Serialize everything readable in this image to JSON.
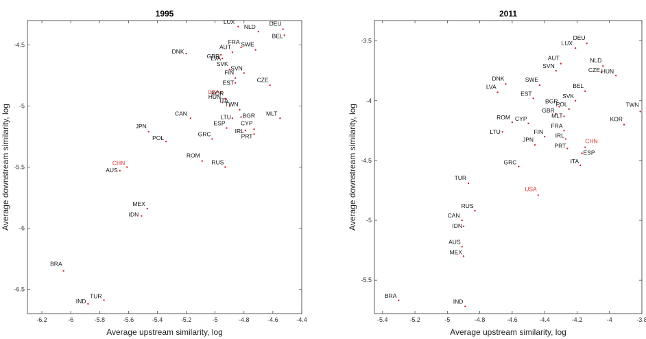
{
  "chart_data": [
    {
      "type": "scatter",
      "title": "1995",
      "xlabel": "Average upstream similarity, log",
      "ylabel": "Average downstream similarity, log",
      "xlim": [
        -6.3,
        -4.4
      ],
      "ylim": [
        -6.7,
        -4.3
      ],
      "xticks": [
        -6.2,
        -6,
        -5.8,
        -5.6,
        -5.4,
        -5.2,
        -5,
        -4.8,
        -4.6,
        -4.4
      ],
      "yticks": [
        -4.5,
        -5,
        -5.5,
        -6,
        -6.5
      ],
      "xtick_labels": [
        "-6.2",
        "-6",
        "-5.8",
        "-5.6",
        "-5.4",
        "-5.2",
        "-5",
        "-4.8",
        "-4.6",
        "-4.4"
      ],
      "ytick_labels": [
        "-4.5",
        "-5",
        "-5.5",
        "-6",
        "-6.5"
      ],
      "highlight_color": "#e03030",
      "point_color": "#d62728",
      "points": [
        {
          "label": "LUX",
          "x": -4.84,
          "y": -4.35,
          "highlight": false
        },
        {
          "label": "NLD",
          "x": -4.7,
          "y": -4.39,
          "highlight": false
        },
        {
          "label": "DEU",
          "x": -4.53,
          "y": -4.37,
          "highlight": false
        },
        {
          "label": "BEL",
          "x": -4.52,
          "y": -4.42,
          "highlight": false
        },
        {
          "label": "FRA",
          "x": -4.82,
          "y": -4.52,
          "highlight": false
        },
        {
          "label": "SWE",
          "x": -4.72,
          "y": -4.54,
          "highlight": false
        },
        {
          "label": "AUT",
          "x": -4.88,
          "y": -4.56,
          "highlight": false
        },
        {
          "label": "GBR",
          "x": -4.96,
          "y": -4.58,
          "highlight": false
        },
        {
          "label": "DNK",
          "x": -5.2,
          "y": -4.57,
          "highlight": false
        },
        {
          "label": "LVA",
          "x": -4.95,
          "y": -4.61,
          "highlight": false
        },
        {
          "label": "SVK",
          "x": -4.9,
          "y": -4.7,
          "highlight": false
        },
        {
          "label": "SVN",
          "x": -4.8,
          "y": -4.73,
          "highlight": false
        },
        {
          "label": "FIN",
          "x": -4.86,
          "y": -4.77,
          "highlight": false
        },
        {
          "label": "CZE",
          "x": -4.62,
          "y": -4.83,
          "highlight": false
        },
        {
          "label": "EST",
          "x": -4.86,
          "y": -4.81,
          "highlight": false
        },
        {
          "label": "USA",
          "x": -4.96,
          "y": -4.89,
          "highlight": true
        },
        {
          "label": "KOR",
          "x": -4.93,
          "y": -4.94,
          "highlight": false
        },
        {
          "label": "HUN",
          "x": -4.95,
          "y": -4.97,
          "highlight": false
        },
        {
          "label": "ITA",
          "x": -4.9,
          "y": -5.0,
          "highlight": false
        },
        {
          "label": "TWN",
          "x": -4.83,
          "y": -5.03,
          "highlight": false
        },
        {
          "label": "CAN",
          "x": -5.17,
          "y": -5.1,
          "highlight": false
        },
        {
          "label": "LTU",
          "x": -4.88,
          "y": -5.1,
          "highlight": false
        },
        {
          "label": "BGR",
          "x": -4.82,
          "y": -5.09,
          "highlight": false
        },
        {
          "label": "MLT",
          "x": -4.55,
          "y": -5.1,
          "highlight": false
        },
        {
          "label": "ESP",
          "x": -4.92,
          "y": -5.18,
          "highlight": false
        },
        {
          "label": "CYP",
          "x": -4.73,
          "y": -5.19,
          "highlight": false
        },
        {
          "label": "IRL",
          "x": -4.79,
          "y": -5.2,
          "highlight": false
        },
        {
          "label": "PRT",
          "x": -4.73,
          "y": -5.23,
          "highlight": false
        },
        {
          "label": "JPN",
          "x": -5.46,
          "y": -5.21,
          "highlight": false
        },
        {
          "label": "POL",
          "x": -5.34,
          "y": -5.29,
          "highlight": false
        },
        {
          "label": "GRC",
          "x": -5.02,
          "y": -5.27,
          "highlight": false
        },
        {
          "label": "ROM",
          "x": -5.09,
          "y": -5.45,
          "highlight": false
        },
        {
          "label": "RUS",
          "x": -4.93,
          "y": -5.5,
          "highlight": false
        },
        {
          "label": "CHN",
          "x": -5.61,
          "y": -5.5,
          "highlight": true
        },
        {
          "label": "AUS",
          "x": -5.66,
          "y": -5.53,
          "highlight": false
        },
        {
          "label": "MEX",
          "x": -5.47,
          "y": -5.84,
          "highlight": false
        },
        {
          "label": "IDN",
          "x": -5.51,
          "y": -5.9,
          "highlight": false
        },
        {
          "label": "BRA",
          "x": -6.05,
          "y": -6.35,
          "highlight": false
        },
        {
          "label": "TUR",
          "x": -5.77,
          "y": -6.59,
          "highlight": false
        },
        {
          "label": "IND",
          "x": -5.88,
          "y": -6.62,
          "highlight": false
        }
      ]
    },
    {
      "type": "scatter",
      "title": "2011",
      "xlabel": "Average upstream similarity, log",
      "ylabel": "Average downstream similarity, log",
      "xlim": [
        -5.45,
        -3.8
      ],
      "ylim": [
        -5.78,
        -3.33
      ],
      "xticks": [
        -5.4,
        -5.2,
        -5,
        -4.8,
        -4.6,
        -4.4,
        -4.2,
        -4,
        -3.8
      ],
      "yticks": [
        -3.5,
        -4,
        -4.5,
        -5,
        -5.5
      ],
      "xtick_labels": [
        "-5.4",
        "-5.2",
        "-5",
        "-4.8",
        "-4.6",
        "-4.4",
        "-4.2",
        "-4",
        "-3.8"
      ],
      "ytick_labels": [
        "-3.5",
        "-4",
        "-4.5",
        "-5",
        "-5.5"
      ],
      "highlight_color": "#e03030",
      "point_color": "#d62728",
      "points": [
        {
          "label": "DEU",
          "x": -4.14,
          "y": -3.52,
          "highlight": false
        },
        {
          "label": "LUX",
          "x": -4.21,
          "y": -3.56,
          "highlight": false
        },
        {
          "label": "AUT",
          "x": -4.3,
          "y": -3.69,
          "highlight": false
        },
        {
          "label": "NLD",
          "x": -4.04,
          "y": -3.71,
          "highlight": false
        },
        {
          "label": "SVN",
          "x": -4.33,
          "y": -3.75,
          "highlight": false
        },
        {
          "label": "CZE",
          "x": -4.05,
          "y": -3.76,
          "highlight": false
        },
        {
          "label": "HUN",
          "x": -3.96,
          "y": -3.79,
          "highlight": false
        },
        {
          "label": "DNK",
          "x": -4.64,
          "y": -3.86,
          "highlight": false
        },
        {
          "label": "SWE",
          "x": -4.43,
          "y": -3.87,
          "highlight": false
        },
        {
          "label": "LVA",
          "x": -4.69,
          "y": -3.93,
          "highlight": false
        },
        {
          "label": "BEL",
          "x": -4.15,
          "y": -3.92,
          "highlight": false
        },
        {
          "label": "EST",
          "x": -4.47,
          "y": -3.98,
          "highlight": false
        },
        {
          "label": "SVK",
          "x": -4.21,
          "y": -4.0,
          "highlight": false
        },
        {
          "label": "TWN",
          "x": -3.81,
          "y": -4.09,
          "highlight": false
        },
        {
          "label": "BGR",
          "x": -4.31,
          "y": -4.05,
          "highlight": false
        },
        {
          "label": "POL",
          "x": -4.25,
          "y": -4.07,
          "highlight": false
        },
        {
          "label": "GBR",
          "x": -4.33,
          "y": -4.11,
          "highlight": false
        },
        {
          "label": "MLT",
          "x": -4.28,
          "y": -4.13,
          "highlight": false
        },
        {
          "label": "ROM",
          "x": -4.6,
          "y": -4.18,
          "highlight": false
        },
        {
          "label": "CYP",
          "x": -4.5,
          "y": -4.19,
          "highlight": false
        },
        {
          "label": "KOR",
          "x": -3.91,
          "y": -4.2,
          "highlight": false
        },
        {
          "label": "FIN",
          "x": -4.4,
          "y": -4.3,
          "highlight": false
        },
        {
          "label": "FRA",
          "x": -4.28,
          "y": -4.25,
          "highlight": false
        },
        {
          "label": "LTU",
          "x": -4.66,
          "y": -4.26,
          "highlight": false
        },
        {
          "label": "IRL",
          "x": -4.27,
          "y": -4.32,
          "highlight": false
        },
        {
          "label": "JPN",
          "x": -4.46,
          "y": -4.37,
          "highlight": false
        },
        {
          "label": "PRT",
          "x": -4.26,
          "y": -4.4,
          "highlight": false
        },
        {
          "label": "CHN",
          "x": -4.15,
          "y": -4.39,
          "highlight": true
        },
        {
          "label": "ITA",
          "x": -4.18,
          "y": -4.54,
          "highlight": false
        },
        {
          "label": "ESP",
          "x": -4.17,
          "y": -4.44,
          "highlight": false
        },
        {
          "label": "GRC",
          "x": -4.56,
          "y": -4.55,
          "highlight": false
        },
        {
          "label": "TUR",
          "x": -4.87,
          "y": -4.69,
          "highlight": false
        },
        {
          "label": "USA",
          "x": -4.44,
          "y": -4.79,
          "highlight": true
        },
        {
          "label": "RUS",
          "x": -4.83,
          "y": -4.92,
          "highlight": false
        },
        {
          "label": "CAN",
          "x": -4.91,
          "y": -5.0,
          "highlight": false
        },
        {
          "label": "IDN",
          "x": -4.9,
          "y": -5.05,
          "highlight": false
        },
        {
          "label": "AUS",
          "x": -4.91,
          "y": -5.22,
          "highlight": false
        },
        {
          "label": "MEX",
          "x": -4.9,
          "y": -5.3,
          "highlight": false
        },
        {
          "label": "BRA",
          "x": -5.3,
          "y": -5.67,
          "highlight": false
        },
        {
          "label": "IND",
          "x": -4.89,
          "y": -5.72,
          "highlight": false
        }
      ]
    }
  ]
}
